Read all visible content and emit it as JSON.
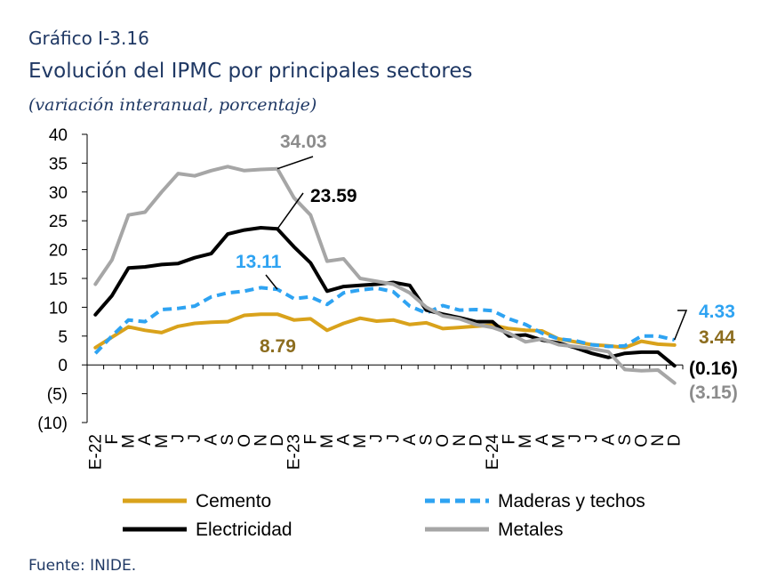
{
  "caption": "Gráfico I-3.16",
  "source": "Fuente: INIDE.",
  "colors": {
    "cemento": "#D9A21B",
    "maderas": "#2EA3F2",
    "electricidad": "#000000",
    "metales": "#A6A6A6",
    "title": "#1F3864",
    "label_cemento": "#8C6D1F",
    "label_metales": "#8C8C8C"
  },
  "chart_data": {
    "type": "line",
    "title": "Evolución del IPMC por principales sectores",
    "subtitle": "(variación interanual, porcentaje)",
    "ylim": [
      -10,
      40
    ],
    "y_ticks": [
      40,
      35,
      30,
      25,
      20,
      15,
      10,
      5,
      0,
      -5,
      -10
    ],
    "y_tick_labels": [
      "40",
      "35",
      "30",
      "25",
      "20",
      "15",
      "10",
      "5",
      "0",
      "(5)",
      "(10)"
    ],
    "x": [
      "E-22",
      "F",
      "M",
      "A",
      "M",
      "J",
      "J",
      "A",
      "S",
      "O",
      "N",
      "D",
      "E-23",
      "F",
      "M",
      "A",
      "M",
      "J",
      "J",
      "A",
      "S",
      "O",
      "N",
      "D",
      "E-24",
      "F",
      "M",
      "A",
      "M",
      "J",
      "J",
      "A",
      "S",
      "O",
      "N",
      "D"
    ],
    "legend_position": "bottom",
    "grid": false,
    "series": [
      {
        "name": "Cemento",
        "color_key": "cemento",
        "dash": false,
        "values": [
          3.0,
          4.8,
          6.6,
          6.0,
          5.6,
          6.7,
          7.2,
          7.4,
          7.5,
          8.6,
          8.8,
          8.79,
          7.8,
          8.0,
          6.0,
          7.2,
          8.1,
          7.6,
          7.8,
          7.0,
          7.3,
          6.3,
          6.5,
          6.7,
          6.9,
          6.3,
          6.0,
          5.9,
          4.5,
          4.0,
          3.5,
          3.3,
          3.0,
          4.1,
          3.6,
          3.44
        ]
      },
      {
        "name": "Maderas y techos",
        "color_key": "maderas",
        "dash": true,
        "values": [
          2.0,
          5.0,
          7.8,
          7.5,
          9.6,
          9.8,
          10.2,
          11.8,
          12.5,
          12.8,
          13.4,
          13.11,
          11.5,
          11.8,
          10.5,
          12.5,
          13.0,
          13.3,
          12.7,
          10.2,
          9.0,
          10.3,
          9.5,
          9.6,
          9.4,
          8.0,
          7.0,
          5.5,
          4.5,
          4.2,
          3.5,
          3.2,
          3.3,
          5.0,
          5.0,
          4.33
        ]
      },
      {
        "name": "Electricidad",
        "color_key": "electricidad",
        "dash": false,
        "values": [
          8.7,
          12.0,
          16.8,
          17.0,
          17.4,
          17.6,
          18.6,
          19.3,
          22.7,
          23.4,
          23.8,
          23.59,
          20.5,
          17.7,
          12.8,
          13.6,
          13.8,
          14.0,
          14.3,
          13.8,
          9.5,
          8.8,
          8.2,
          7.5,
          7.5,
          5.0,
          5.2,
          4.3,
          3.8,
          3.0,
          2.0,
          1.3,
          2.0,
          2.2,
          2.2,
          -0.16
        ]
      },
      {
        "name": "Metales",
        "color_key": "metales",
        "dash": false,
        "values": [
          14.0,
          18.2,
          26.0,
          26.5,
          30.0,
          33.2,
          32.8,
          33.7,
          34.4,
          33.7,
          33.9,
          34.03,
          29.0,
          26.0,
          18.0,
          18.4,
          15.0,
          14.5,
          14.0,
          12.5,
          10.0,
          8.5,
          8.0,
          7.0,
          6.5,
          5.5,
          4.0,
          4.5,
          3.5,
          3.2,
          2.8,
          2.3,
          -0.8,
          -1.0,
          -0.9,
          -3.15
        ]
      }
    ],
    "data_labels": [
      {
        "text": "34.03",
        "series": "Metales",
        "color_key": "label_metales"
      },
      {
        "text": "23.59",
        "series": "Electricidad",
        "color_key": "electricidad"
      },
      {
        "text": "13.11",
        "series": "Maderas y techos",
        "color_key": "maderas"
      },
      {
        "text": "8.79",
        "series": "Cemento",
        "color_key": "label_cemento"
      },
      {
        "text": "4.33",
        "series": "Maderas y techos",
        "color_key": "maderas"
      },
      {
        "text": "3.44",
        "series": "Cemento",
        "color_key": "label_cemento"
      },
      {
        "text": "(0.16)",
        "series": "Electricidad",
        "color_key": "electricidad"
      },
      {
        "text": "(3.15)",
        "series": "Metales",
        "color_key": "label_metales"
      }
    ]
  }
}
